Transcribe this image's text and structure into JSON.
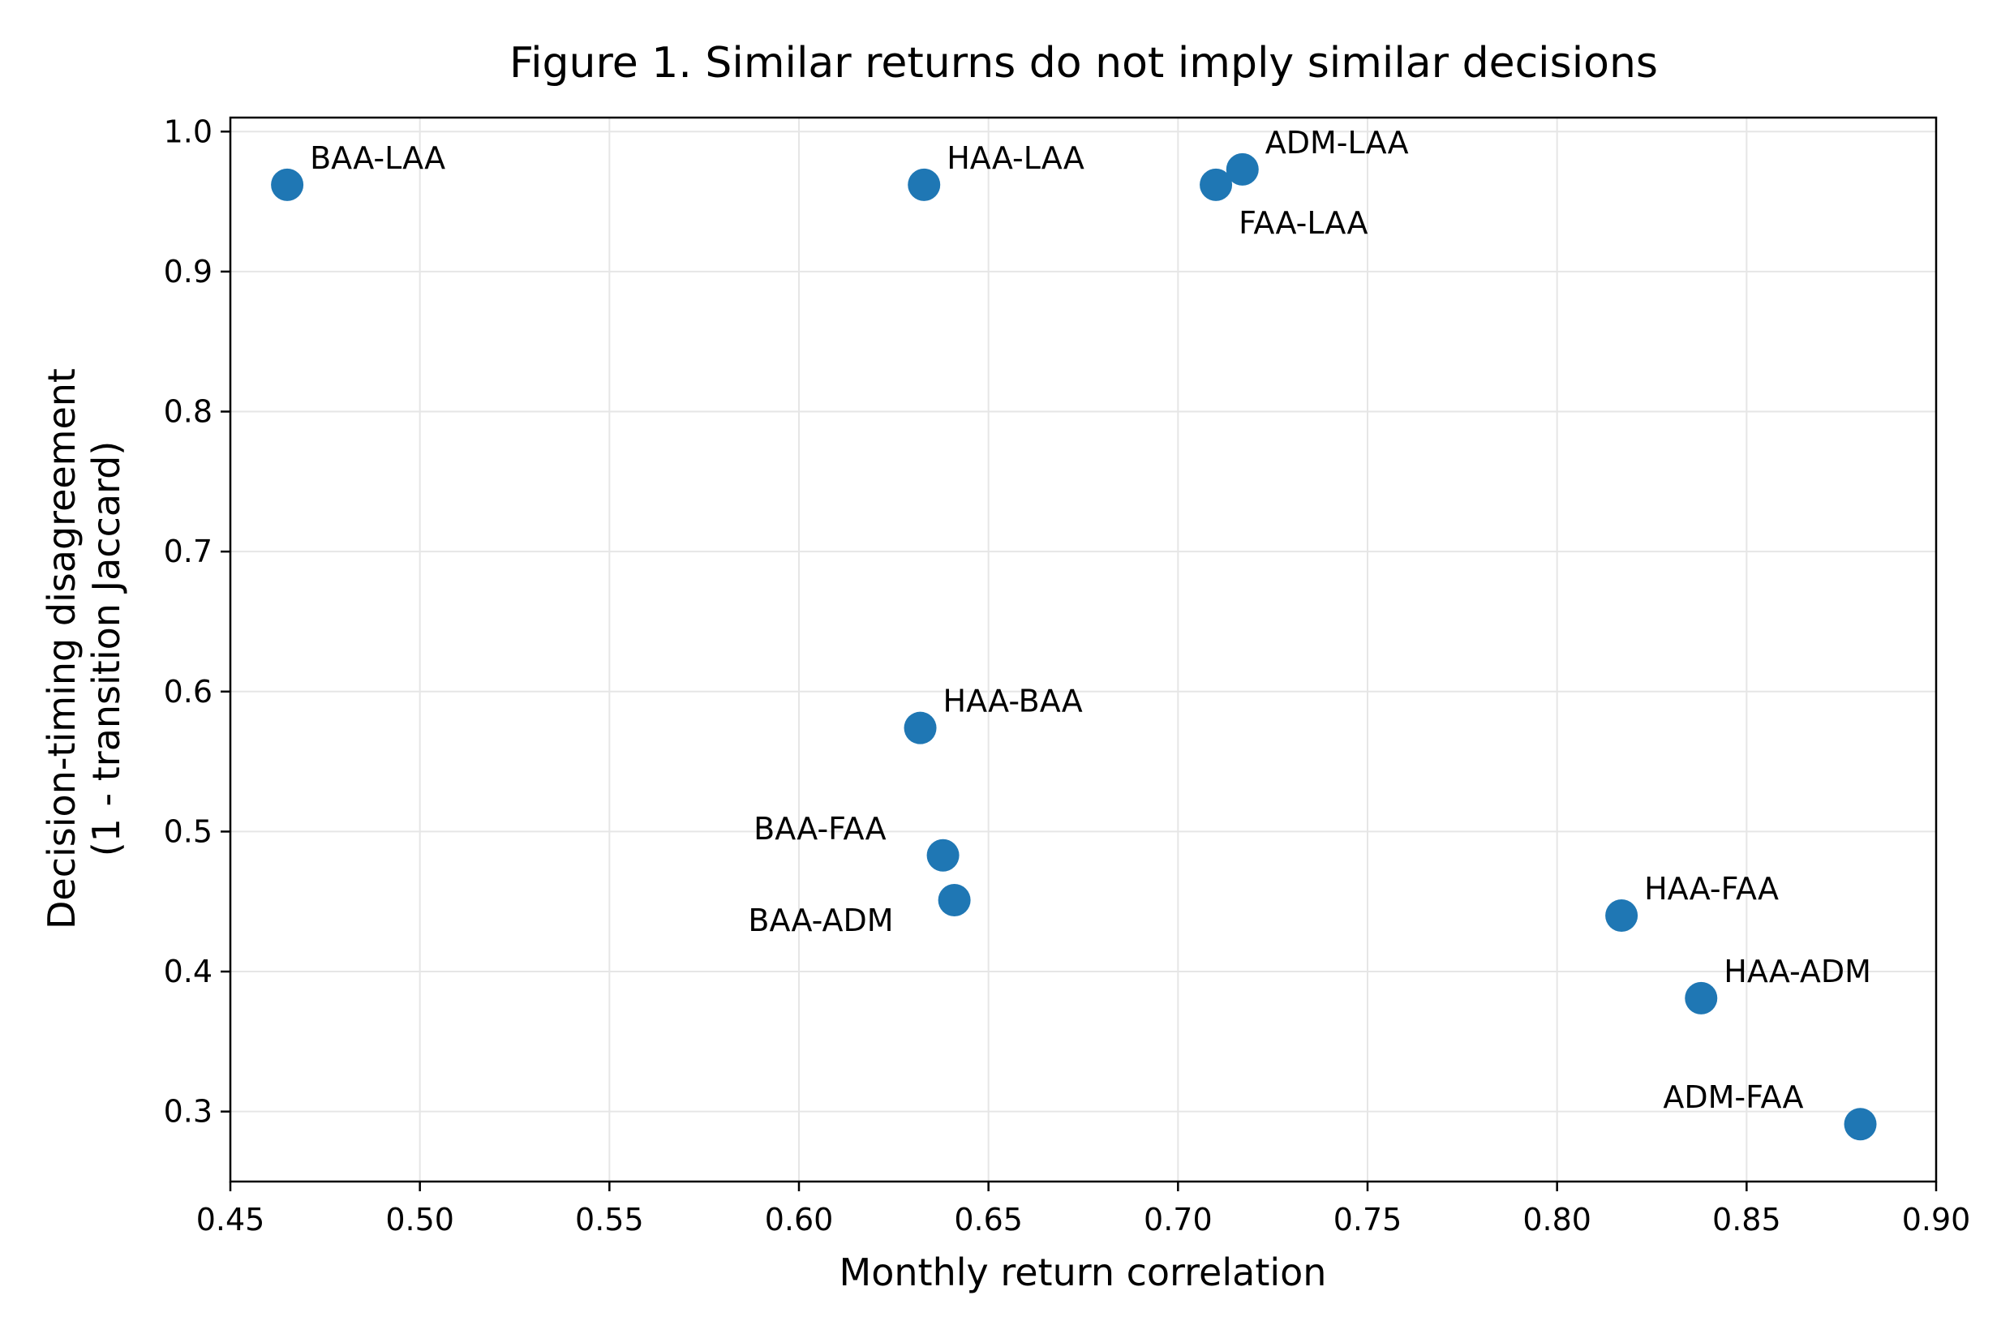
{
  "chart_data": {
    "type": "scatter",
    "title": "Figure 1. Similar returns do not imply similar decisions",
    "xlabel": "Monthly return correlation",
    "ylabel": [
      "Decision-timing disagreement",
      "(1 - transition Jaccard)"
    ],
    "xlim": [
      0.45,
      0.9
    ],
    "ylim": [
      0.25,
      1.01
    ],
    "x_ticks": [
      "0.45",
      "0.50",
      "0.55",
      "0.60",
      "0.65",
      "0.70",
      "0.75",
      "0.80",
      "0.85",
      "0.90"
    ],
    "y_ticks": [
      "0.3",
      "0.4",
      "0.5",
      "0.6",
      "0.7",
      "0.8",
      "0.9",
      "1.0"
    ],
    "grid": true,
    "marker_color": "#1f77b4",
    "points": [
      {
        "label": "BAA-LAA",
        "x": 0.465,
        "y": 0.962,
        "label_pos": "above-right"
      },
      {
        "label": "HAA-LAA",
        "x": 0.633,
        "y": 0.962,
        "label_pos": "above-right"
      },
      {
        "label": "ADM-LAA",
        "x": 0.717,
        "y": 0.973,
        "label_pos": "above-right"
      },
      {
        "label": "FAA-LAA",
        "x": 0.71,
        "y": 0.962,
        "label_pos": "below-right"
      },
      {
        "label": "HAA-BAA",
        "x": 0.632,
        "y": 0.574,
        "label_pos": "above-right"
      },
      {
        "label": "BAA-FAA",
        "x": 0.638,
        "y": 0.483,
        "label_pos": "above-left"
      },
      {
        "label": "BAA-ADM",
        "x": 0.641,
        "y": 0.451,
        "label_pos": "below-left"
      },
      {
        "label": "HAA-FAA",
        "x": 0.817,
        "y": 0.44,
        "label_pos": "above-right"
      },
      {
        "label": "HAA-ADM",
        "x": 0.838,
        "y": 0.381,
        "label_pos": "above-right"
      },
      {
        "label": "ADM-FAA",
        "x": 0.88,
        "y": 0.291,
        "label_pos": "above-left"
      }
    ]
  }
}
